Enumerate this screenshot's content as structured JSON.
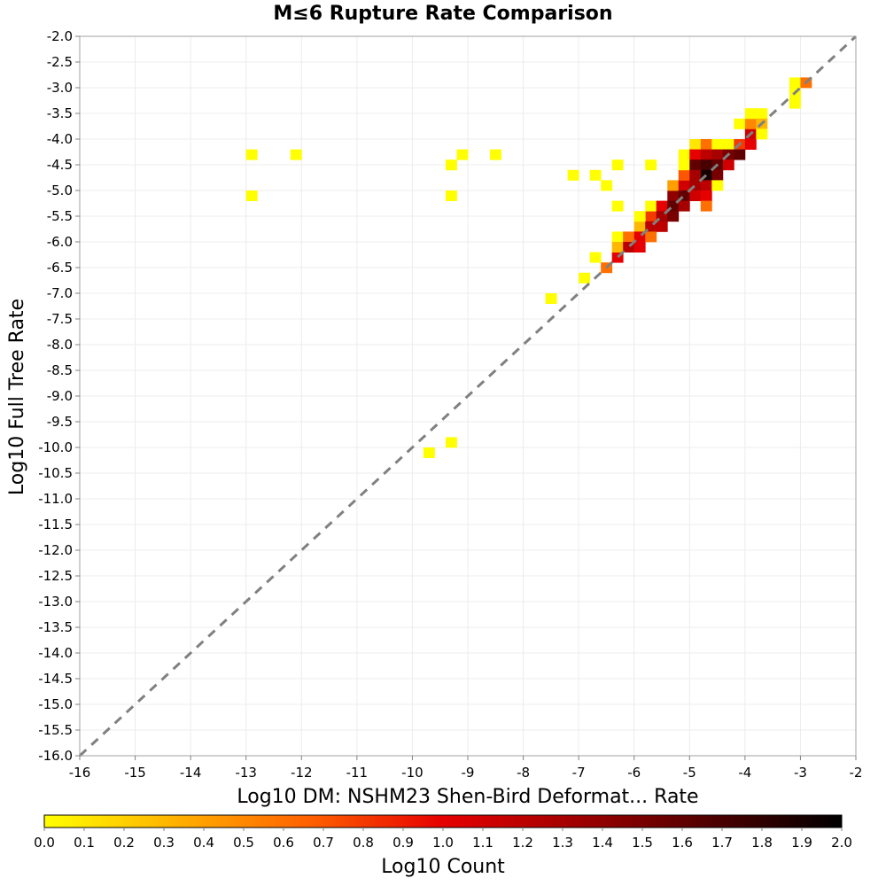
{
  "chart_data": {
    "type": "heatmap",
    "title": "M≤6 Rupture Rate Comparison",
    "xlabel": "Log10 DM: NSHM23 Shen-Bird Deformat... Rate",
    "ylabel": "Log10 Full Tree Rate",
    "xlim": [
      -16,
      -2
    ],
    "ylim": [
      -16,
      -2
    ],
    "x_ticks": [
      "-16",
      "-15",
      "-14",
      "-13",
      "-12",
      "-11",
      "-10",
      "-9",
      "-8",
      "-7",
      "-6",
      "-5",
      "-4",
      "-3",
      "-2"
    ],
    "y_ticks": [
      "-2.0",
      "-2.5",
      "-3.0",
      "-3.5",
      "-4.0",
      "-4.5",
      "-5.0",
      "-5.5",
      "-6.0",
      "-6.5",
      "-7.0",
      "-7.5",
      "-8.0",
      "-8.5",
      "-9.0",
      "-9.5",
      "-10.0",
      "-10.5",
      "-11.0",
      "-11.5",
      "-12.0",
      "-12.5",
      "-13.0",
      "-13.5",
      "-14.0",
      "-14.5",
      "-15.0",
      "-15.5",
      "-16.0"
    ],
    "grid": true,
    "reference_line": "y = x (dashed gray)",
    "colorbar": {
      "label": "Log10 Count",
      "range": [
        0,
        2
      ],
      "ticks": [
        "0.0",
        "0.1",
        "0.2",
        "0.3",
        "0.4",
        "0.5",
        "0.6",
        "0.7",
        "0.8",
        "0.9",
        "1.0",
        "1.1",
        "1.2",
        "1.3",
        "1.4",
        "1.5",
        "1.6",
        "1.7",
        "1.8",
        "1.9",
        "2.0"
      ],
      "colormap": [
        "#ffff00",
        "#ffb000",
        "#ff6000",
        "#e60000",
        "#a00000",
        "#500000",
        "#000000"
      ]
    },
    "cells_note": "each cell: [log10 DM rate (x center), log10 full tree rate (y center), log10 count]",
    "cells": [
      [
        -12.9,
        -4.3,
        0.0
      ],
      [
        -12.1,
        -4.3,
        0.0
      ],
      [
        -12.9,
        -5.1,
        0.0
      ],
      [
        -9.3,
        -4.5,
        0.0
      ],
      [
        -9.1,
        -4.3,
        0.0
      ],
      [
        -8.5,
        -4.3,
        0.0
      ],
      [
        -9.3,
        -5.1,
        0.0
      ],
      [
        -9.7,
        -10.1,
        0.0
      ],
      [
        -9.3,
        -9.9,
        0.0
      ],
      [
        -7.5,
        -7.1,
        0.0
      ],
      [
        -6.9,
        -6.7,
        0.0
      ],
      [
        -6.7,
        -6.3,
        0.0
      ],
      [
        -6.5,
        -6.5,
        0.6
      ],
      [
        -6.3,
        -6.3,
        1.0
      ],
      [
        -7.1,
        -4.7,
        0.0
      ],
      [
        -6.7,
        -4.7,
        0.0
      ],
      [
        -6.5,
        -4.9,
        0.0
      ],
      [
        -6.3,
        -4.5,
        0.0
      ],
      [
        -6.3,
        -5.3,
        0.0
      ],
      [
        -5.7,
        -4.5,
        0.0
      ],
      [
        -6.3,
        -5.9,
        0.0
      ],
      [
        -6.3,
        -6.1,
        0.3
      ],
      [
        -6.1,
        -5.9,
        0.6
      ],
      [
        -6.1,
        -6.1,
        1.2
      ],
      [
        -5.9,
        -5.7,
        0.3
      ],
      [
        -5.9,
        -5.9,
        1.0
      ],
      [
        -5.9,
        -6.1,
        1.0
      ],
      [
        -5.7,
        -5.5,
        0.8
      ],
      [
        -5.7,
        -5.7,
        1.2
      ],
      [
        -5.7,
        -5.9,
        0.6
      ],
      [
        -5.9,
        -5.5,
        0.0
      ],
      [
        -5.7,
        -5.3,
        0.0
      ],
      [
        -5.5,
        -5.3,
        1.0
      ],
      [
        -5.5,
        -5.5,
        1.3
      ],
      [
        -5.5,
        -5.7,
        1.2
      ],
      [
        -5.3,
        -5.1,
        1.4
      ],
      [
        -5.3,
        -5.3,
        1.6
      ],
      [
        -5.3,
        -5.5,
        1.5
      ],
      [
        -5.3,
        -4.9,
        0.4
      ],
      [
        -5.1,
        -4.9,
        1.1
      ],
      [
        -5.1,
        -5.1,
        1.6
      ],
      [
        -5.1,
        -5.3,
        1.3
      ],
      [
        -5.1,
        -4.7,
        0.7
      ],
      [
        -5.1,
        -4.5,
        0.0
      ],
      [
        -5.1,
        -4.3,
        0.0
      ],
      [
        -4.9,
        -4.1,
        0.1
      ],
      [
        -4.9,
        -4.3,
        1.0
      ],
      [
        -4.9,
        -4.5,
        1.6
      ],
      [
        -4.9,
        -4.7,
        1.3
      ],
      [
        -4.9,
        -4.9,
        1.3
      ],
      [
        -4.9,
        -5.1,
        1.1
      ],
      [
        -4.7,
        -4.1,
        0.6
      ],
      [
        -4.7,
        -4.3,
        1.2
      ],
      [
        -4.7,
        -4.5,
        1.7
      ],
      [
        -4.7,
        -4.7,
        1.9
      ],
      [
        -4.7,
        -4.9,
        1.2
      ],
      [
        -4.7,
        -5.1,
        1.0
      ],
      [
        -4.7,
        -5.3,
        0.6
      ],
      [
        -4.5,
        -4.1,
        0.0
      ],
      [
        -4.5,
        -4.3,
        1.3
      ],
      [
        -4.5,
        -4.5,
        1.6
      ],
      [
        -4.5,
        -4.7,
        1.5
      ],
      [
        -4.5,
        -4.9,
        0.0
      ],
      [
        -4.3,
        -4.1,
        0.0
      ],
      [
        -4.3,
        -4.3,
        1.5
      ],
      [
        -4.3,
        -4.5,
        1.1
      ],
      [
        -4.1,
        -4.1,
        0.8
      ],
      [
        -4.1,
        -4.3,
        1.6
      ],
      [
        -4.1,
        -3.7,
        0.0
      ],
      [
        -3.9,
        -3.9,
        1.1
      ],
      [
        -3.9,
        -4.1,
        1.0
      ],
      [
        -3.9,
        -3.7,
        0.5
      ],
      [
        -3.9,
        -3.5,
        0.0
      ],
      [
        -3.7,
        -3.5,
        0.0
      ],
      [
        -3.7,
        -3.7,
        0.3
      ],
      [
        -3.7,
        -3.9,
        0.0
      ],
      [
        -3.1,
        -2.9,
        0.0
      ],
      [
        -3.1,
        -3.1,
        0.0
      ],
      [
        -3.1,
        -3.3,
        0.0
      ],
      [
        -2.9,
        -2.9,
        0.6
      ]
    ]
  }
}
